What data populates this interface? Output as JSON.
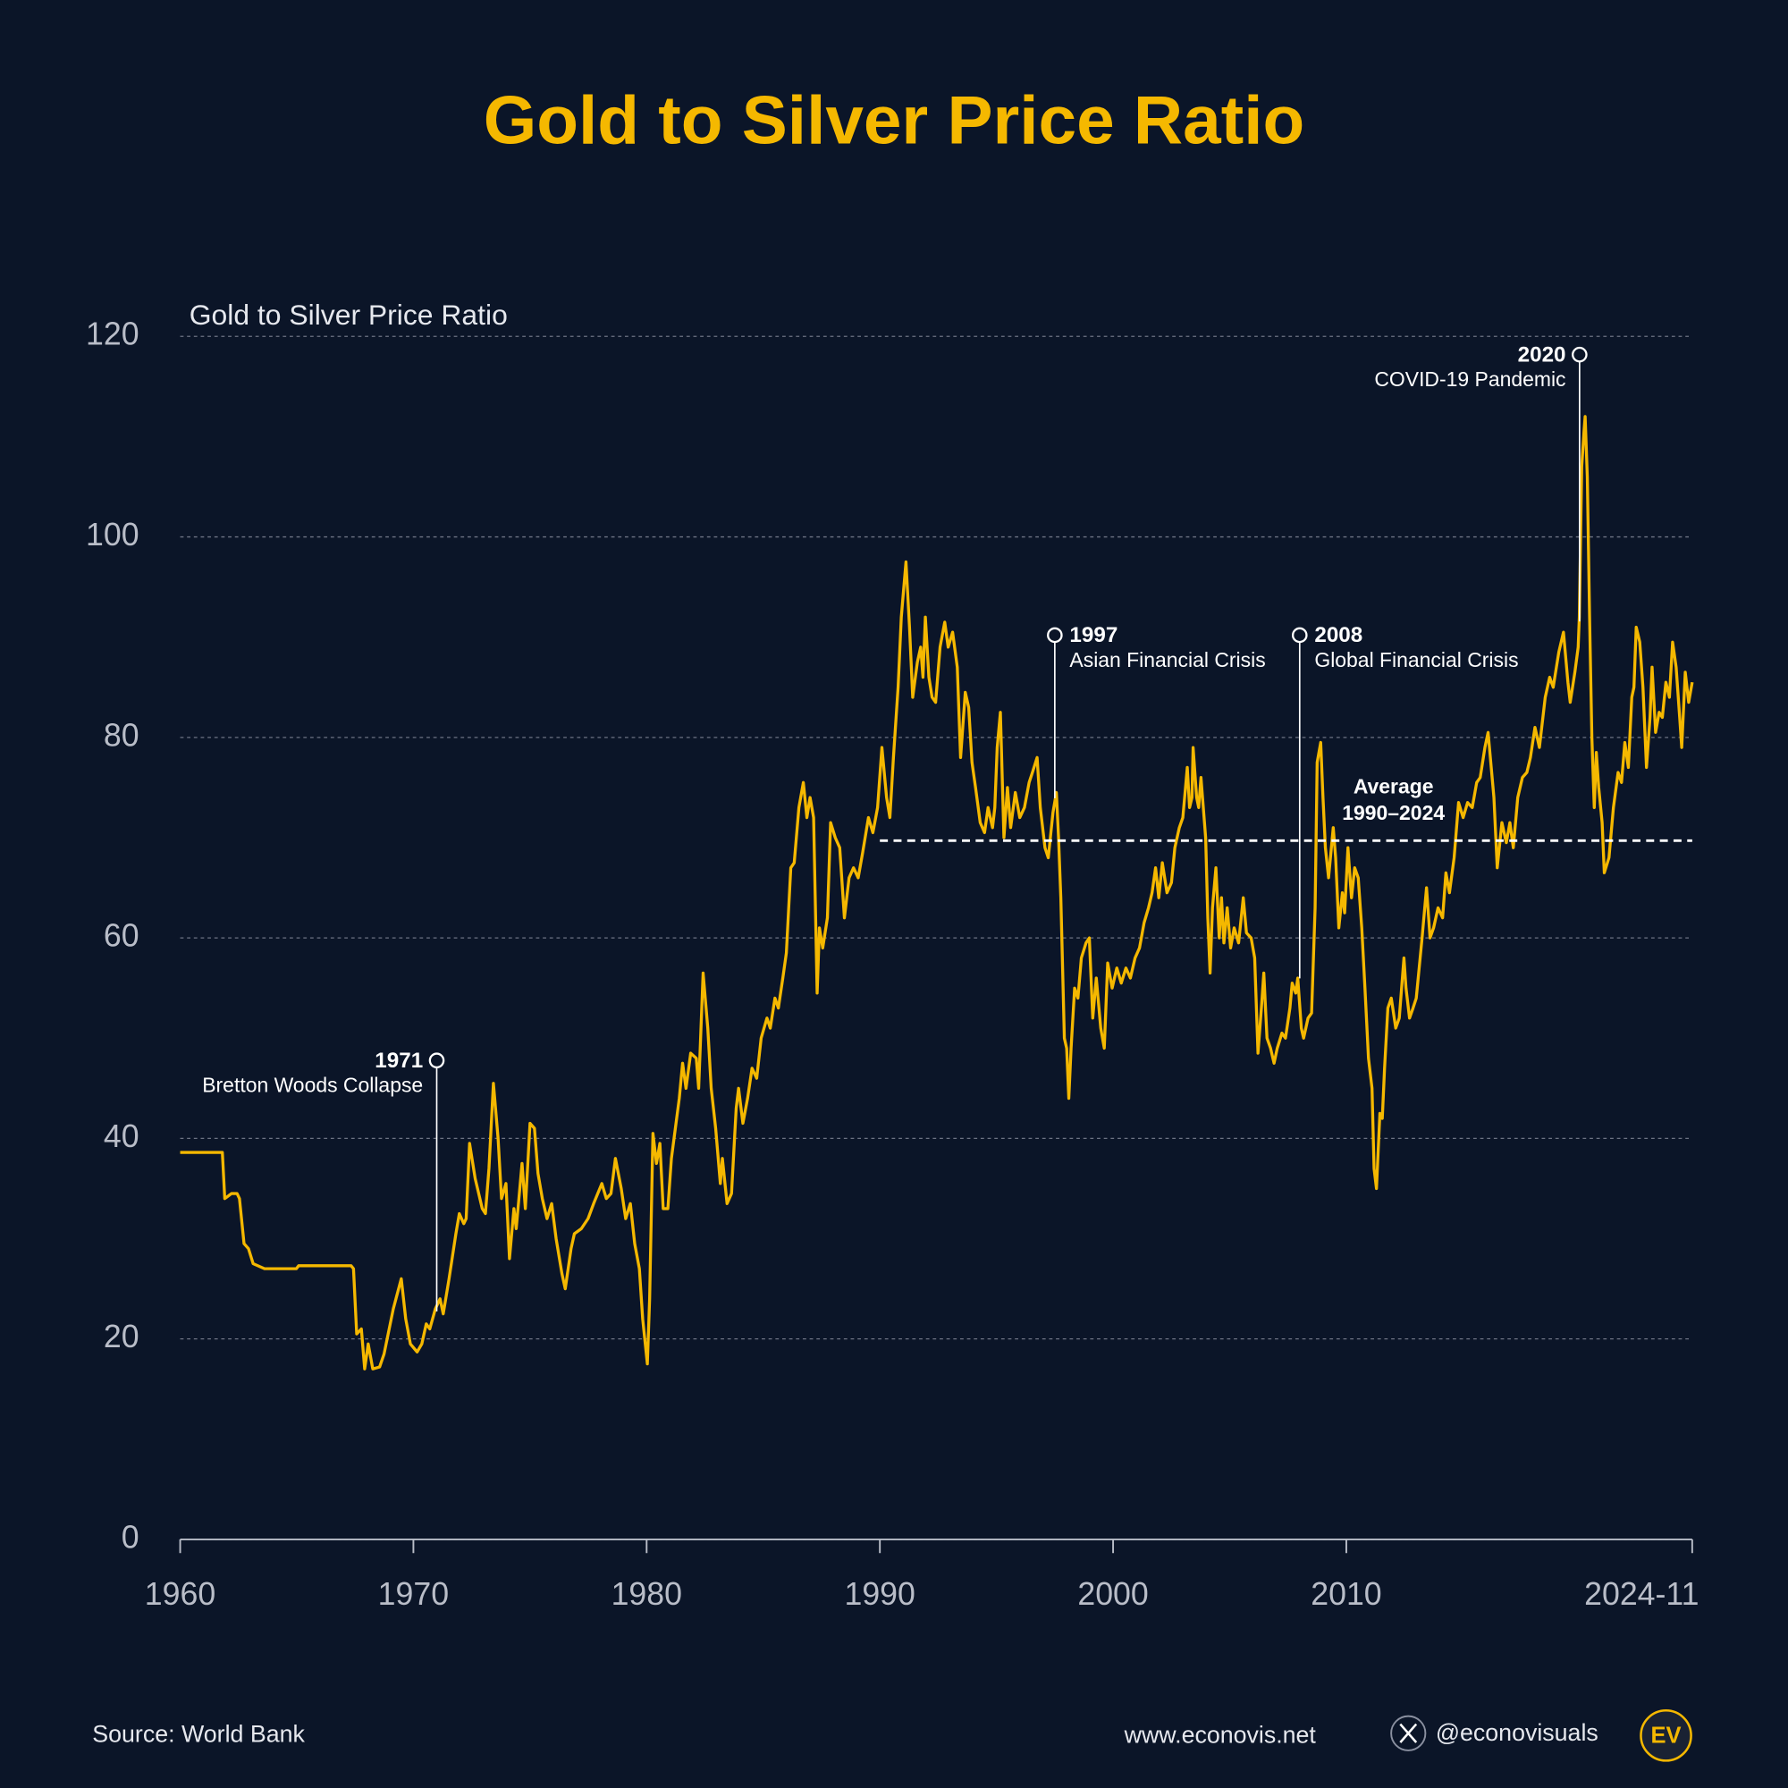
{
  "chart_data": {
    "type": "line",
    "title": "Gold to Silver Price Ratio",
    "y_label": "Gold to Silver Price Ratio",
    "color": "#f5b800",
    "grid": true,
    "xlim": [
      1960,
      2024.83
    ],
    "xticks": [
      1960,
      1970,
      1980,
      1990,
      2000,
      2010,
      {
        "value": 2024.83,
        "label": "2024-11"
      }
    ],
    "ylim": [
      0,
      120
    ],
    "yticks": [
      0,
      20,
      40,
      60,
      80,
      100,
      120
    ],
    "x": [
      1960.0,
      1961.81,
      1961.91,
      1962.2,
      1962.44,
      1962.54,
      1962.74,
      1962.93,
      1963.13,
      1963.62,
      1964.98,
      1965.08,
      1967.33,
      1967.43,
      1967.57,
      1967.77,
      1967.91,
      1968.06,
      1968.26,
      1968.55,
      1968.74,
      1969.14,
      1969.48,
      1969.67,
      1969.87,
      1970.16,
      1970.36,
      1970.55,
      1970.7,
      1970.94,
      1971.14,
      1971.28,
      1971.53,
      1971.82,
      1971.97,
      1972.16,
      1972.26,
      1972.41,
      1972.65,
      1972.95,
      1973.09,
      1973.24,
      1973.43,
      1973.63,
      1973.78,
      1973.97,
      1974.12,
      1974.31,
      1974.41,
      1974.66,
      1974.8,
      1975.0,
      1975.19,
      1975.34,
      1975.53,
      1975.73,
      1975.93,
      1976.12,
      1976.37,
      1976.51,
      1976.76,
      1976.9,
      1977.2,
      1977.49,
      1977.73,
      1978.08,
      1978.27,
      1978.47,
      1978.66,
      1978.91,
      1979.1,
      1979.3,
      1979.49,
      1979.69,
      1979.83,
      1980.03,
      1980.13,
      1980.27,
      1980.42,
      1980.57,
      1980.71,
      1980.91,
      1981.06,
      1981.4,
      1981.54,
      1981.69,
      1981.89,
      1982.13,
      1982.23,
      1982.42,
      1982.62,
      1982.77,
      1982.96,
      1983.16,
      1983.25,
      1983.45,
      1983.64,
      1983.84,
      1983.94,
      1984.13,
      1984.33,
      1984.52,
      1984.72,
      1984.91,
      1985.16,
      1985.3,
      1985.5,
      1985.65,
      1985.84,
      1985.99,
      1986.18,
      1986.33,
      1986.53,
      1986.72,
      1986.87,
      1987.01,
      1987.16,
      1987.31,
      1987.41,
      1987.55,
      1987.75,
      1987.89,
      1988.09,
      1988.28,
      1988.48,
      1988.68,
      1988.87,
      1989.07,
      1989.26,
      1989.51,
      1989.7,
      1989.9,
      1990.09,
      1990.29,
      1990.43,
      1990.58,
      1990.78,
      1990.92,
      1991.12,
      1991.27,
      1991.41,
      1991.61,
      1991.75,
      1991.85,
      1991.95,
      1992.1,
      1992.24,
      1992.39,
      1992.58,
      1992.78,
      1992.93,
      1993.12,
      1993.32,
      1993.46,
      1993.66,
      1993.81,
      1993.95,
      1994.1,
      1994.3,
      1994.49,
      1994.64,
      1994.83,
      1994.93,
      1995.03,
      1995.17,
      1995.32,
      1995.47,
      1995.61,
      1995.81,
      1996.0,
      1996.2,
      1996.4,
      1996.54,
      1996.74,
      1996.88,
      1997.08,
      1997.22,
      1997.42,
      1997.57,
      1997.66,
      1997.76,
      1997.91,
      1998.01,
      1998.1,
      1998.2,
      1998.35,
      1998.49,
      1998.64,
      1998.84,
      1998.98,
      1999.13,
      1999.28,
      1999.47,
      1999.62,
      1999.77,
      1999.96,
      2000.16,
      2000.35,
      2000.55,
      2000.74,
      2000.94,
      2001.13,
      2001.33,
      2001.52,
      2001.67,
      2001.82,
      2001.96,
      2002.11,
      2002.31,
      2002.5,
      2002.65,
      2002.84,
      2002.99,
      2003.18,
      2003.28,
      2003.38,
      2003.43,
      2003.58,
      2003.67,
      2003.77,
      2003.97,
      2004.06,
      2004.16,
      2004.26,
      2004.41,
      2004.55,
      2004.65,
      2004.75,
      2004.89,
      2005.04,
      2005.19,
      2005.38,
      2005.58,
      2005.72,
      2005.92,
      2006.07,
      2006.21,
      2006.36,
      2006.46,
      2006.6,
      2006.75,
      2006.9,
      2007.04,
      2007.24,
      2007.39,
      2007.58,
      2007.68,
      2007.83,
      2007.92,
      2008.07,
      2008.17,
      2008.36,
      2008.51,
      2008.66,
      2008.75,
      2008.9,
      2009.0,
      2009.1,
      2009.24,
      2009.44,
      2009.54,
      2009.68,
      2009.83,
      2009.93,
      2010.07,
      2010.22,
      2010.36,
      2010.51,
      2010.66,
      2010.8,
      2010.95,
      2011.1,
      2011.19,
      2011.29,
      2011.44,
      2011.54,
      2011.64,
      2011.78,
      2011.93,
      2012.12,
      2012.27,
      2012.47,
      2012.56,
      2012.71,
      2012.86,
      2013.0,
      2013.25,
      2013.44,
      2013.59,
      2013.74,
      2013.93,
      2014.13,
      2014.27,
      2014.42,
      2014.62,
      2014.81,
      2015.01,
      2015.2,
      2015.4,
      2015.59,
      2015.74,
      2015.94,
      2016.08,
      2016.33,
      2016.47,
      2016.67,
      2016.86,
      2017.01,
      2017.16,
      2017.35,
      2017.55,
      2017.74,
      2017.89,
      2018.09,
      2018.28,
      2018.53,
      2018.72,
      2018.87,
      2019.11,
      2019.31,
      2019.5,
      2019.6,
      2019.8,
      2019.94,
      2019.99,
      2020.09,
      2020.19,
      2020.24,
      2020.33,
      2020.43,
      2020.53,
      2020.63,
      2020.72,
      2020.82,
      2020.97,
      2021.06,
      2021.26,
      2021.45,
      2021.65,
      2021.8,
      2021.94,
      2022.09,
      2022.24,
      2022.33,
      2022.43,
      2022.58,
      2022.72,
      2022.87,
      2023.02,
      2023.11,
      2023.26,
      2023.41,
      2023.55,
      2023.7,
      2023.85,
      2023.99,
      2024.14,
      2024.29,
      2024.38,
      2024.53,
      2024.68,
      2024.83
    ],
    "values": [
      38.6,
      38.6,
      34,
      34.5,
      34.5,
      34,
      29.5,
      29,
      27.5,
      27,
      27,
      27.3,
      27.3,
      27,
      20.5,
      21,
      17,
      19.5,
      17,
      17.2,
      18.5,
      23,
      26,
      22,
      19.5,
      18.7,
      19.5,
      21.5,
      21,
      23,
      24,
      22.5,
      26,
      30.5,
      32.5,
      31.5,
      32,
      39.5,
      36,
      33,
      32.5,
      37,
      45.5,
      40,
      34,
      35.5,
      28,
      33,
      31,
      37.5,
      33,
      41.5,
      41,
      36.5,
      34,
      32,
      33.5,
      30,
      26.5,
      25,
      29,
      30.5,
      31,
      32,
      33.5,
      35.5,
      34,
      34.5,
      38,
      35,
      32,
      33.5,
      29.5,
      27,
      22,
      17.5,
      24,
      40.5,
      37.5,
      39.5,
      33,
      33,
      38,
      44,
      47.5,
      45,
      48.5,
      48,
      45,
      56.5,
      51,
      45,
      41,
      35.5,
      38,
      33.5,
      34.5,
      43,
      45,
      41.5,
      44,
      47,
      46,
      50,
      52,
      51,
      54,
      53,
      56,
      58.5,
      67,
      67.5,
      73,
      75.5,
      72,
      74,
      72,
      54.5,
      61,
      59,
      62,
      71.5,
      70,
      69,
      62,
      66,
      67,
      66,
      68.5,
      72,
      70.5,
      73,
      79,
      74,
      72,
      78,
      85,
      92,
      97.5,
      91,
      84,
      87.5,
      89,
      86,
      92,
      86,
      84,
      83.5,
      89,
      91.5,
      89,
      90.5,
      87,
      78,
      84.5,
      83,
      77.5,
      75,
      71.5,
      70.5,
      73,
      71,
      73,
      79,
      82.5,
      70,
      75,
      71,
      74.5,
      72,
      73,
      75.5,
      76.5,
      78,
      73,
      69,
      68,
      72.5,
      74.5,
      70,
      64,
      50,
      49,
      44,
      49,
      55,
      54,
      58,
      59.5,
      60,
      52,
      56,
      51,
      49,
      57.5,
      55,
      57,
      55.5,
      57,
      56,
      58,
      59,
      61.5,
      63,
      64.5,
      67,
      64,
      67.5,
      64.5,
      65.5,
      69,
      71,
      72,
      77,
      73,
      74,
      79,
      74,
      73,
      76,
      70,
      62,
      56.5,
      63,
      67,
      60,
      64,
      59.5,
      63,
      59,
      61,
      59.5,
      64,
      60.5,
      60,
      58,
      48.5,
      53,
      56.5,
      50,
      49,
      47.5,
      49,
      50.5,
      50,
      53,
      55.5,
      54.5,
      56,
      51,
      50,
      52,
      52.5,
      63,
      77.5,
      79.5,
      74,
      69,
      66,
      71,
      68,
      61,
      64.5,
      62.5,
      69,
      64,
      67,
      66,
      61,
      55,
      48,
      45,
      37,
      35,
      42.5,
      42,
      47,
      53,
      54,
      51,
      52,
      58,
      55,
      52,
      53,
      54,
      60,
      65,
      60,
      61,
      63,
      62,
      66.5,
      64.5,
      68,
      73.5,
      72,
      73.5,
      73,
      75.5,
      76,
      79,
      80.5,
      74,
      67,
      71.5,
      69.5,
      71.5,
      69,
      74,
      76,
      76.5,
      78,
      81,
      79,
      84,
      86,
      85,
      88.5,
      90.5,
      85.5,
      83.5,
      86.5,
      89,
      92,
      107,
      110.5,
      112,
      106,
      92,
      80,
      73,
      78.5,
      75,
      71.5,
      66.5,
      68,
      73,
      76.5,
      75.5,
      79.5,
      77,
      84,
      85,
      91,
      89.5,
      85,
      77,
      82,
      87,
      80.5,
      82.5,
      82,
      85.5,
      84,
      89.5,
      87,
      82,
      79,
      86.5,
      83.5,
      85.5
    ],
    "average": {
      "label": "Average",
      "period": "1990–2024",
      "value": 69.7,
      "start": 1990
    },
    "annotations": [
      {
        "x": 1971,
        "year": "1971",
        "event": "Bretton Woods Collapse"
      },
      {
        "x": 1997.5,
        "year": "1997",
        "event": "Asian Financial Crisis"
      },
      {
        "x": 2008,
        "year": "2008",
        "event": "Global Financial Crisis"
      },
      {
        "x": 2020,
        "year": "2020",
        "event": "COVID-19 Pandemic"
      }
    ]
  },
  "footer": {
    "source": "Source: World Bank",
    "website": "www.econovis.net",
    "handle": "@econovisuals",
    "logo": "EV"
  }
}
